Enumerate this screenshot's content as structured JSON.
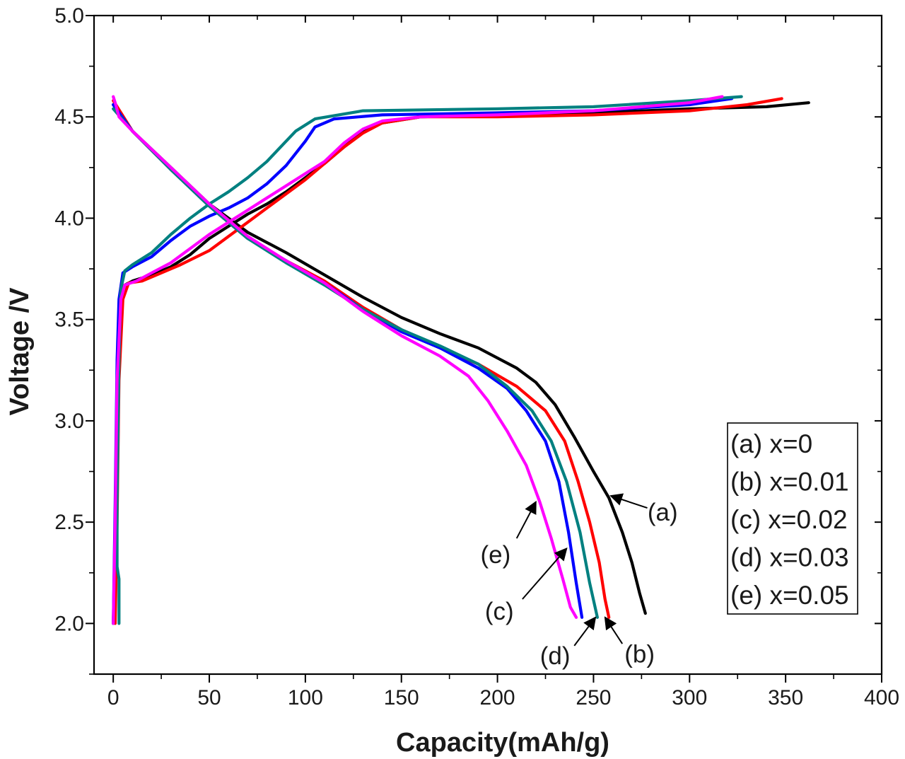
{
  "chart_data": {
    "type": "line",
    "xlabel": "Capacity(mAh/g)",
    "ylabel": "Voltage /V",
    "xlim": [
      -10,
      400
    ],
    "ylim": [
      1.75,
      5.0
    ],
    "xticks": [
      0,
      50,
      100,
      150,
      200,
      250,
      300,
      350,
      400
    ],
    "xtick_labels": [
      "0",
      "50",
      "100",
      "150",
      "200",
      "250",
      "300",
      "350",
      "400"
    ],
    "yticks": [
      2.0,
      2.5,
      3.0,
      3.5,
      4.0,
      4.5,
      5.0
    ],
    "ytick_labels": [
      "2.0",
      "2.5",
      "3.0",
      "3.5",
      "4.0",
      "4.5",
      "5.0"
    ],
    "grid": false,
    "legend_position": "lower-right",
    "legend": [
      "(a)  x=0",
      "(b) x=0.01",
      "(c) x=0.02",
      "(d) x=0.03",
      "(e) x=0.05"
    ],
    "series": [
      {
        "name": "(a)  x=0",
        "color": "#000000",
        "charge": [
          [
            0,
            2.0
          ],
          [
            1,
            2.3
          ],
          [
            2,
            3.0
          ],
          [
            3,
            3.45
          ],
          [
            4,
            3.6
          ],
          [
            6,
            3.67
          ],
          [
            10,
            3.69
          ],
          [
            20,
            3.72
          ],
          [
            30,
            3.76
          ],
          [
            40,
            3.82
          ],
          [
            50,
            3.9
          ],
          [
            60,
            3.96
          ],
          [
            70,
            4.02
          ],
          [
            80,
            4.07
          ],
          [
            90,
            4.13
          ],
          [
            100,
            4.2
          ],
          [
            110,
            4.27
          ],
          [
            120,
            4.35
          ],
          [
            130,
            4.43
          ],
          [
            140,
            4.47
          ],
          [
            160,
            4.5
          ],
          [
            200,
            4.51
          ],
          [
            250,
            4.52
          ],
          [
            300,
            4.54
          ],
          [
            340,
            4.55
          ],
          [
            362,
            4.57
          ]
        ],
        "discharge": [
          [
            0,
            4.56
          ],
          [
            10,
            4.43
          ],
          [
            30,
            4.25
          ],
          [
            50,
            4.07
          ],
          [
            70,
            3.93
          ],
          [
            90,
            3.83
          ],
          [
            110,
            3.72
          ],
          [
            130,
            3.61
          ],
          [
            150,
            3.51
          ],
          [
            170,
            3.43
          ],
          [
            190,
            3.36
          ],
          [
            210,
            3.26
          ],
          [
            220,
            3.19
          ],
          [
            230,
            3.08
          ],
          [
            240,
            2.92
          ],
          [
            250,
            2.75
          ],
          [
            258,
            2.62
          ],
          [
            265,
            2.45
          ],
          [
            270,
            2.3
          ],
          [
            274,
            2.15
          ],
          [
            277,
            2.05
          ]
        ]
      },
      {
        "name": "(b) x=0.01",
        "color": "#ff0000",
        "charge": [
          [
            1,
            2.0
          ],
          [
            2,
            2.5
          ],
          [
            3,
            3.2
          ],
          [
            5,
            3.6
          ],
          [
            8,
            3.68
          ],
          [
            15,
            3.69
          ],
          [
            25,
            3.73
          ],
          [
            35,
            3.77
          ],
          [
            50,
            3.84
          ],
          [
            60,
            3.91
          ],
          [
            70,
            3.98
          ],
          [
            80,
            4.05
          ],
          [
            90,
            4.12
          ],
          [
            100,
            4.19
          ],
          [
            110,
            4.27
          ],
          [
            120,
            4.35
          ],
          [
            130,
            4.42
          ],
          [
            140,
            4.47
          ],
          [
            160,
            4.5
          ],
          [
            200,
            4.5
          ],
          [
            250,
            4.51
          ],
          [
            300,
            4.53
          ],
          [
            330,
            4.56
          ],
          [
            348,
            4.59
          ]
        ],
        "discharge": [
          [
            0,
            4.58
          ],
          [
            10,
            4.43
          ],
          [
            30,
            4.24
          ],
          [
            50,
            4.06
          ],
          [
            70,
            3.9
          ],
          [
            90,
            3.79
          ],
          [
            110,
            3.69
          ],
          [
            130,
            3.56
          ],
          [
            150,
            3.45
          ],
          [
            170,
            3.36
          ],
          [
            190,
            3.28
          ],
          [
            210,
            3.17
          ],
          [
            225,
            3.05
          ],
          [
            235,
            2.9
          ],
          [
            242,
            2.7
          ],
          [
            248,
            2.5
          ],
          [
            253,
            2.3
          ],
          [
            256,
            2.12
          ],
          [
            258,
            2.03
          ]
        ]
      },
      {
        "name": "(c) x=0.02",
        "color": "#0000ff",
        "charge": [
          [
            0,
            2.0
          ],
          [
            1,
            2.6
          ],
          [
            2,
            3.3
          ],
          [
            3,
            3.6
          ],
          [
            5,
            3.73
          ],
          [
            10,
            3.76
          ],
          [
            20,
            3.81
          ],
          [
            30,
            3.89
          ],
          [
            40,
            3.96
          ],
          [
            50,
            4.01
          ],
          [
            60,
            4.05
          ],
          [
            70,
            4.1
          ],
          [
            80,
            4.17
          ],
          [
            90,
            4.26
          ],
          [
            100,
            4.38
          ],
          [
            105,
            4.45
          ],
          [
            115,
            4.49
          ],
          [
            140,
            4.51
          ],
          [
            200,
            4.52
          ],
          [
            250,
            4.53
          ],
          [
            300,
            4.56
          ],
          [
            322,
            4.59
          ]
        ],
        "discharge": [
          [
            0,
            4.56
          ],
          [
            10,
            4.43
          ],
          [
            30,
            4.24
          ],
          [
            50,
            4.06
          ],
          [
            70,
            3.9
          ],
          [
            90,
            3.79
          ],
          [
            110,
            3.68
          ],
          [
            130,
            3.55
          ],
          [
            150,
            3.44
          ],
          [
            170,
            3.36
          ],
          [
            190,
            3.26
          ],
          [
            205,
            3.16
          ],
          [
            215,
            3.05
          ],
          [
            225,
            2.9
          ],
          [
            232,
            2.7
          ],
          [
            237,
            2.45
          ],
          [
            241,
            2.2
          ],
          [
            244,
            2.03
          ]
        ]
      },
      {
        "name": "(d) x=0.03",
        "color": "#008080",
        "charge": [
          [
            3,
            2.0
          ],
          [
            3,
            2.22
          ],
          [
            2,
            2.28
          ],
          [
            2,
            2.6
          ],
          [
            3,
            3.3
          ],
          [
            4,
            3.65
          ],
          [
            6,
            3.74
          ],
          [
            10,
            3.77
          ],
          [
            20,
            3.83
          ],
          [
            30,
            3.92
          ],
          [
            40,
            4.0
          ],
          [
            50,
            4.07
          ],
          [
            60,
            4.13
          ],
          [
            70,
            4.2
          ],
          [
            80,
            4.28
          ],
          [
            90,
            4.38
          ],
          [
            95,
            4.43
          ],
          [
            105,
            4.49
          ],
          [
            130,
            4.53
          ],
          [
            200,
            4.54
          ],
          [
            250,
            4.55
          ],
          [
            300,
            4.58
          ],
          [
            327,
            4.6
          ]
        ],
        "discharge": [
          [
            0,
            4.54
          ],
          [
            10,
            4.43
          ],
          [
            30,
            4.24
          ],
          [
            50,
            4.06
          ],
          [
            70,
            3.9
          ],
          [
            90,
            3.78
          ],
          [
            110,
            3.67
          ],
          [
            130,
            3.55
          ],
          [
            150,
            3.45
          ],
          [
            170,
            3.37
          ],
          [
            190,
            3.28
          ],
          [
            205,
            3.17
          ],
          [
            218,
            3.05
          ],
          [
            228,
            2.9
          ],
          [
            236,
            2.7
          ],
          [
            243,
            2.45
          ],
          [
            248,
            2.2
          ],
          [
            252,
            2.03
          ]
        ]
      },
      {
        "name": "(e) x=0.05",
        "color": "#ff00ff",
        "charge": [
          [
            0,
            2.0
          ],
          [
            1,
            2.5
          ],
          [
            2,
            3.2
          ],
          [
            4,
            3.6
          ],
          [
            6,
            3.67
          ],
          [
            12,
            3.69
          ],
          [
            20,
            3.73
          ],
          [
            30,
            3.78
          ],
          [
            40,
            3.85
          ],
          [
            50,
            3.92
          ],
          [
            60,
            3.98
          ],
          [
            70,
            4.04
          ],
          [
            80,
            4.1
          ],
          [
            90,
            4.16
          ],
          [
            100,
            4.22
          ],
          [
            110,
            4.28
          ],
          [
            120,
            4.37
          ],
          [
            130,
            4.44
          ],
          [
            140,
            4.48
          ],
          [
            160,
            4.5
          ],
          [
            200,
            4.51
          ],
          [
            250,
            4.53
          ],
          [
            300,
            4.57
          ],
          [
            317,
            4.6
          ]
        ],
        "discharge": [
          [
            0,
            4.6
          ],
          [
            1,
            4.57
          ],
          [
            3,
            4.5
          ],
          [
            10,
            4.43
          ],
          [
            30,
            4.25
          ],
          [
            50,
            4.07
          ],
          [
            70,
            3.91
          ],
          [
            90,
            3.79
          ],
          [
            110,
            3.68
          ],
          [
            130,
            3.54
          ],
          [
            150,
            3.42
          ],
          [
            170,
            3.32
          ],
          [
            185,
            3.22
          ],
          [
            195,
            3.1
          ],
          [
            205,
            2.95
          ],
          [
            215,
            2.78
          ],
          [
            222,
            2.6
          ],
          [
            228,
            2.42
          ],
          [
            234,
            2.22
          ],
          [
            238,
            2.08
          ],
          [
            241,
            2.03
          ]
        ]
      }
    ],
    "annotations": [
      {
        "label": "(a)",
        "text_at": [
          286,
          2.55
        ],
        "arrow_from": [
          278,
          2.57
        ],
        "arrow_to": [
          259,
          2.63
        ]
      },
      {
        "label": "(b)",
        "text_at": [
          274,
          1.85
        ],
        "arrow_from": [
          265,
          1.9
        ],
        "arrow_to": [
          256,
          2.03
        ]
      },
      {
        "label": "(c)",
        "text_at": [
          201,
          2.06
        ],
        "arrow_from": [
          213,
          2.12
        ],
        "arrow_to": [
          236,
          2.37
        ]
      },
      {
        "label": "(d)",
        "text_at": [
          230,
          1.84
        ],
        "arrow_from": [
          240,
          1.89
        ],
        "arrow_to": [
          251,
          2.03
        ]
      },
      {
        "label": "(e)",
        "text_at": [
          199,
          2.34
        ],
        "arrow_from": [
          210,
          2.42
        ],
        "arrow_to": [
          220,
          2.6
        ]
      }
    ]
  }
}
